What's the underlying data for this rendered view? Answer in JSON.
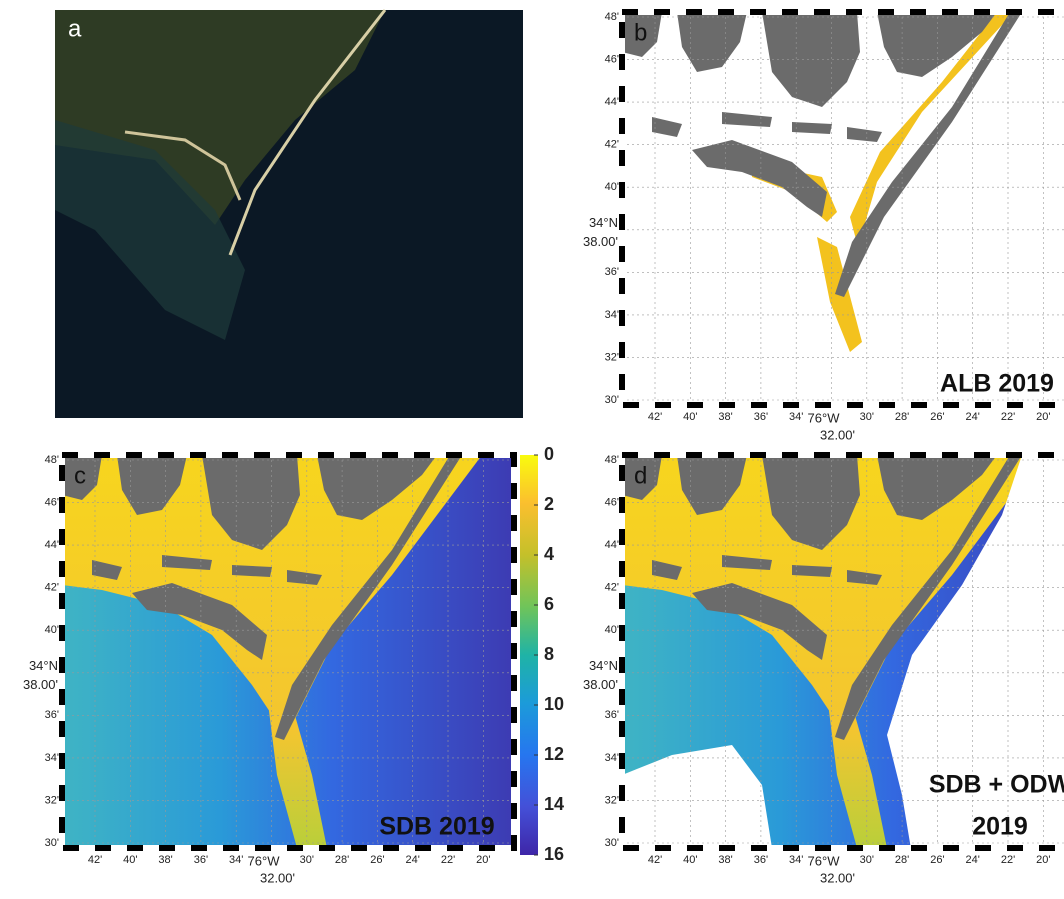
{
  "panels": [
    {
      "label": "a",
      "annotation": []
    },
    {
      "label": "b",
      "annotation": [
        "ALB 2019"
      ]
    },
    {
      "label": "c",
      "annotation": [
        "SDB 2019"
      ]
    },
    {
      "label": "d",
      "annotation": [
        "SDB + ODW",
        "2019"
      ]
    }
  ],
  "axes": {
    "yticks": [
      "48'",
      "46'",
      "44'",
      "42'",
      "40'",
      "38.00'",
      "36'",
      "34'",
      "32'",
      "30'"
    ],
    "lat_label": "34°N",
    "xticks": [
      "42'",
      "40'",
      "38'",
      "36'",
      "34'",
      "32.00'",
      "30'",
      "28'",
      "26'",
      "24'",
      "22'",
      "20'"
    ],
    "lon_label": "76°W"
  },
  "colorbar": {
    "range": [
      0,
      16
    ],
    "ticks": [
      0,
      2,
      4,
      6,
      8,
      10,
      12,
      14,
      16
    ]
  }
}
